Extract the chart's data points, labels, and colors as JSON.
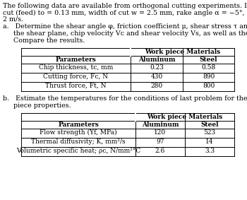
{
  "bg_color": "#ffffff",
  "text_color": "#000000",
  "intro_line1": "The following data are available from orthogonal cutting experiments. In both cases, depth of",
  "intro_line2": "cut (feed) to = 0.13 mm, width of cut w = 2.5 mm, rake angle α = −5°, and cutting speed V =",
  "intro_line3": "2 m/s.",
  "part_a_line1": "a.   Determine the shear angle φ, friction coefficient μ, shear stress τ and shear strain γ on",
  "part_a_line2": "     the shear plane, chip velocity Vc and shear velocity Vs, as well as the unit energies.",
  "part_a_line3": "     Compare the results.",
  "table1_header": "Work piece Materials",
  "table1_subheaders": [
    "Parameters",
    "Aluminum",
    "Steel"
  ],
  "table1_rows": [
    [
      "Chip thickness, tc, mm",
      "0.23",
      "0.58"
    ],
    [
      "Cutting force, Fc, N",
      "430",
      "890"
    ],
    [
      "Thrust force, Ft, N",
      "280",
      "800"
    ]
  ],
  "part_b_line1": "b.   Estimate the temperatures for the conditions of last problem for the following work",
  "part_b_line2": "     piece properties.",
  "table2_header": "Work piece Materials",
  "table2_subheaders": [
    "Parameters",
    "Aluminum",
    "Steel"
  ],
  "table2_rows": [
    [
      "Flow strength (Yf, MPa)",
      "120",
      "523"
    ],
    [
      "Thermal diffusivity; K, mm²/s",
      "97",
      "14"
    ],
    [
      "Volumetric specific heat; ρc, N/mm²°C",
      "2.6",
      "3.3"
    ]
  ],
  "fs_body": 6.8,
  "fs_table": 6.5,
  "fs_bold": 6.8
}
